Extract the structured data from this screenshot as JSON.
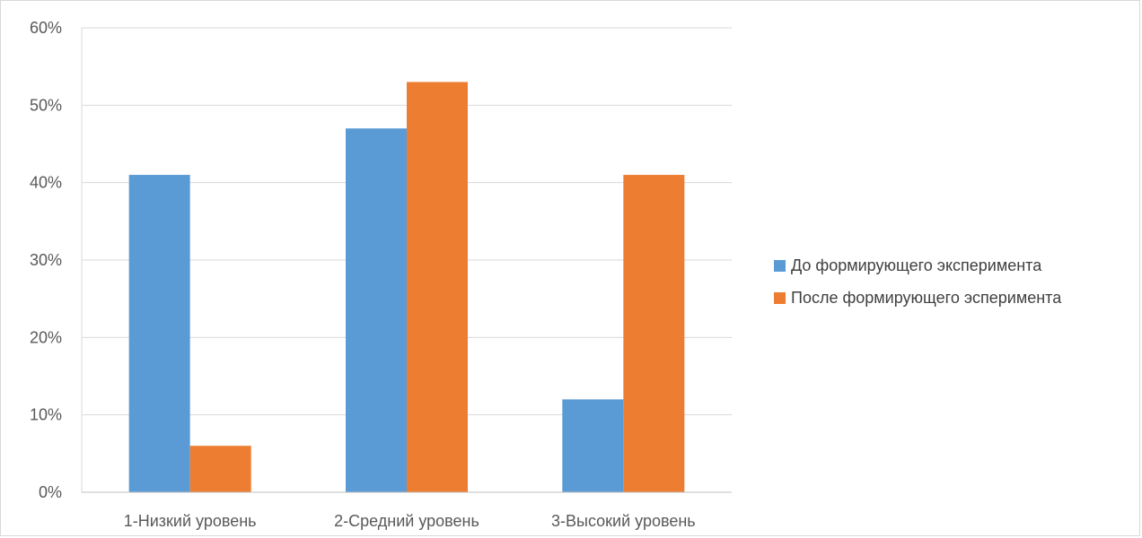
{
  "chart_data": {
    "type": "bar",
    "title": "",
    "xlabel": "",
    "ylabel": "",
    "categories": [
      "1-Низкий уровень",
      "2-Средний уровень",
      "3-Высокий уровень"
    ],
    "series": [
      {
        "name": "До формирующего эксперимента",
        "values": [
          41,
          47,
          12
        ],
        "color": "#5b9bd5"
      },
      {
        "name": "После формирующего эсперимента",
        "values": [
          6,
          53,
          41
        ],
        "color": "#ed7d31"
      }
    ],
    "ylim": [
      0,
      60
    ],
    "yticks": [
      0,
      10,
      20,
      30,
      40,
      50,
      60
    ],
    "ytick_labels": [
      "0%",
      "10%",
      "20%",
      "30%",
      "40%",
      "50%",
      "60%"
    ],
    "grid": true,
    "gridline_color": "#d9d9d9",
    "legend_position": "right"
  }
}
